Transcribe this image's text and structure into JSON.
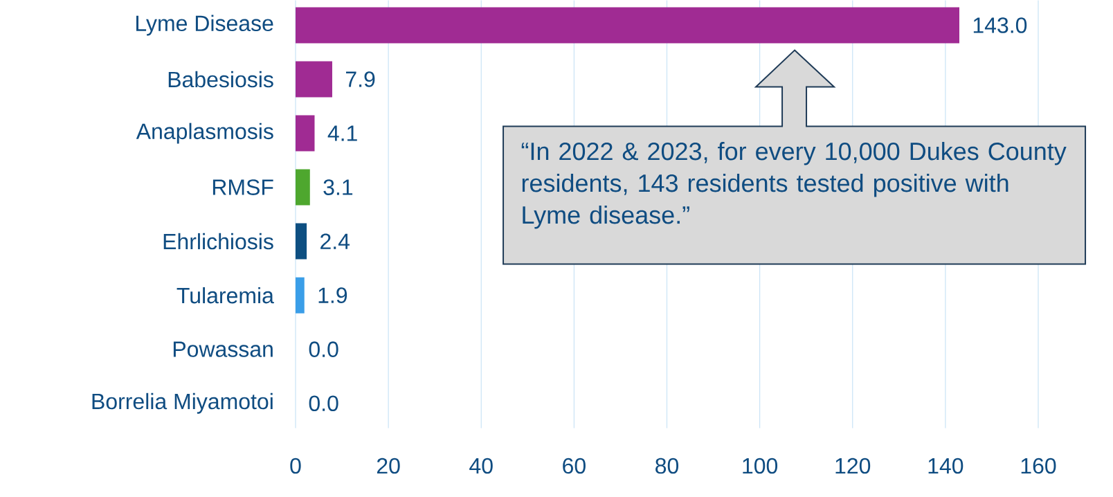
{
  "chart_data": {
    "type": "bar",
    "orientation": "horizontal",
    "categories": [
      "Lyme Disease",
      "Babesiosis",
      "Anaplasmosis",
      "RMSF",
      "Ehrlichiosis",
      "Tularemia",
      "Powassan",
      "Borrelia Miyamotoi"
    ],
    "values": [
      143.0,
      7.9,
      4.1,
      3.1,
      2.4,
      1.9,
      0.0,
      0.0
    ],
    "value_labels": [
      "143.0",
      "7.9",
      "4.1",
      "3.1",
      "2.4",
      "1.9",
      "0.0",
      "0.0"
    ],
    "colors": [
      "#a02b93",
      "#a02b93",
      "#a02b93",
      "#4ea72e",
      "#0e4f81",
      "#3a9ee8",
      "#3a9ee8",
      "#3a9ee8"
    ],
    "xlim": [
      0,
      160
    ],
    "xticks": [
      0,
      20,
      40,
      60,
      80,
      100,
      120,
      140,
      160
    ],
    "grid": "x",
    "annotations": [
      "“In 2022 & 2023, for every 10,000 Dukes County residents, 143 residents tested positive with Lyme disease.”"
    ]
  }
}
